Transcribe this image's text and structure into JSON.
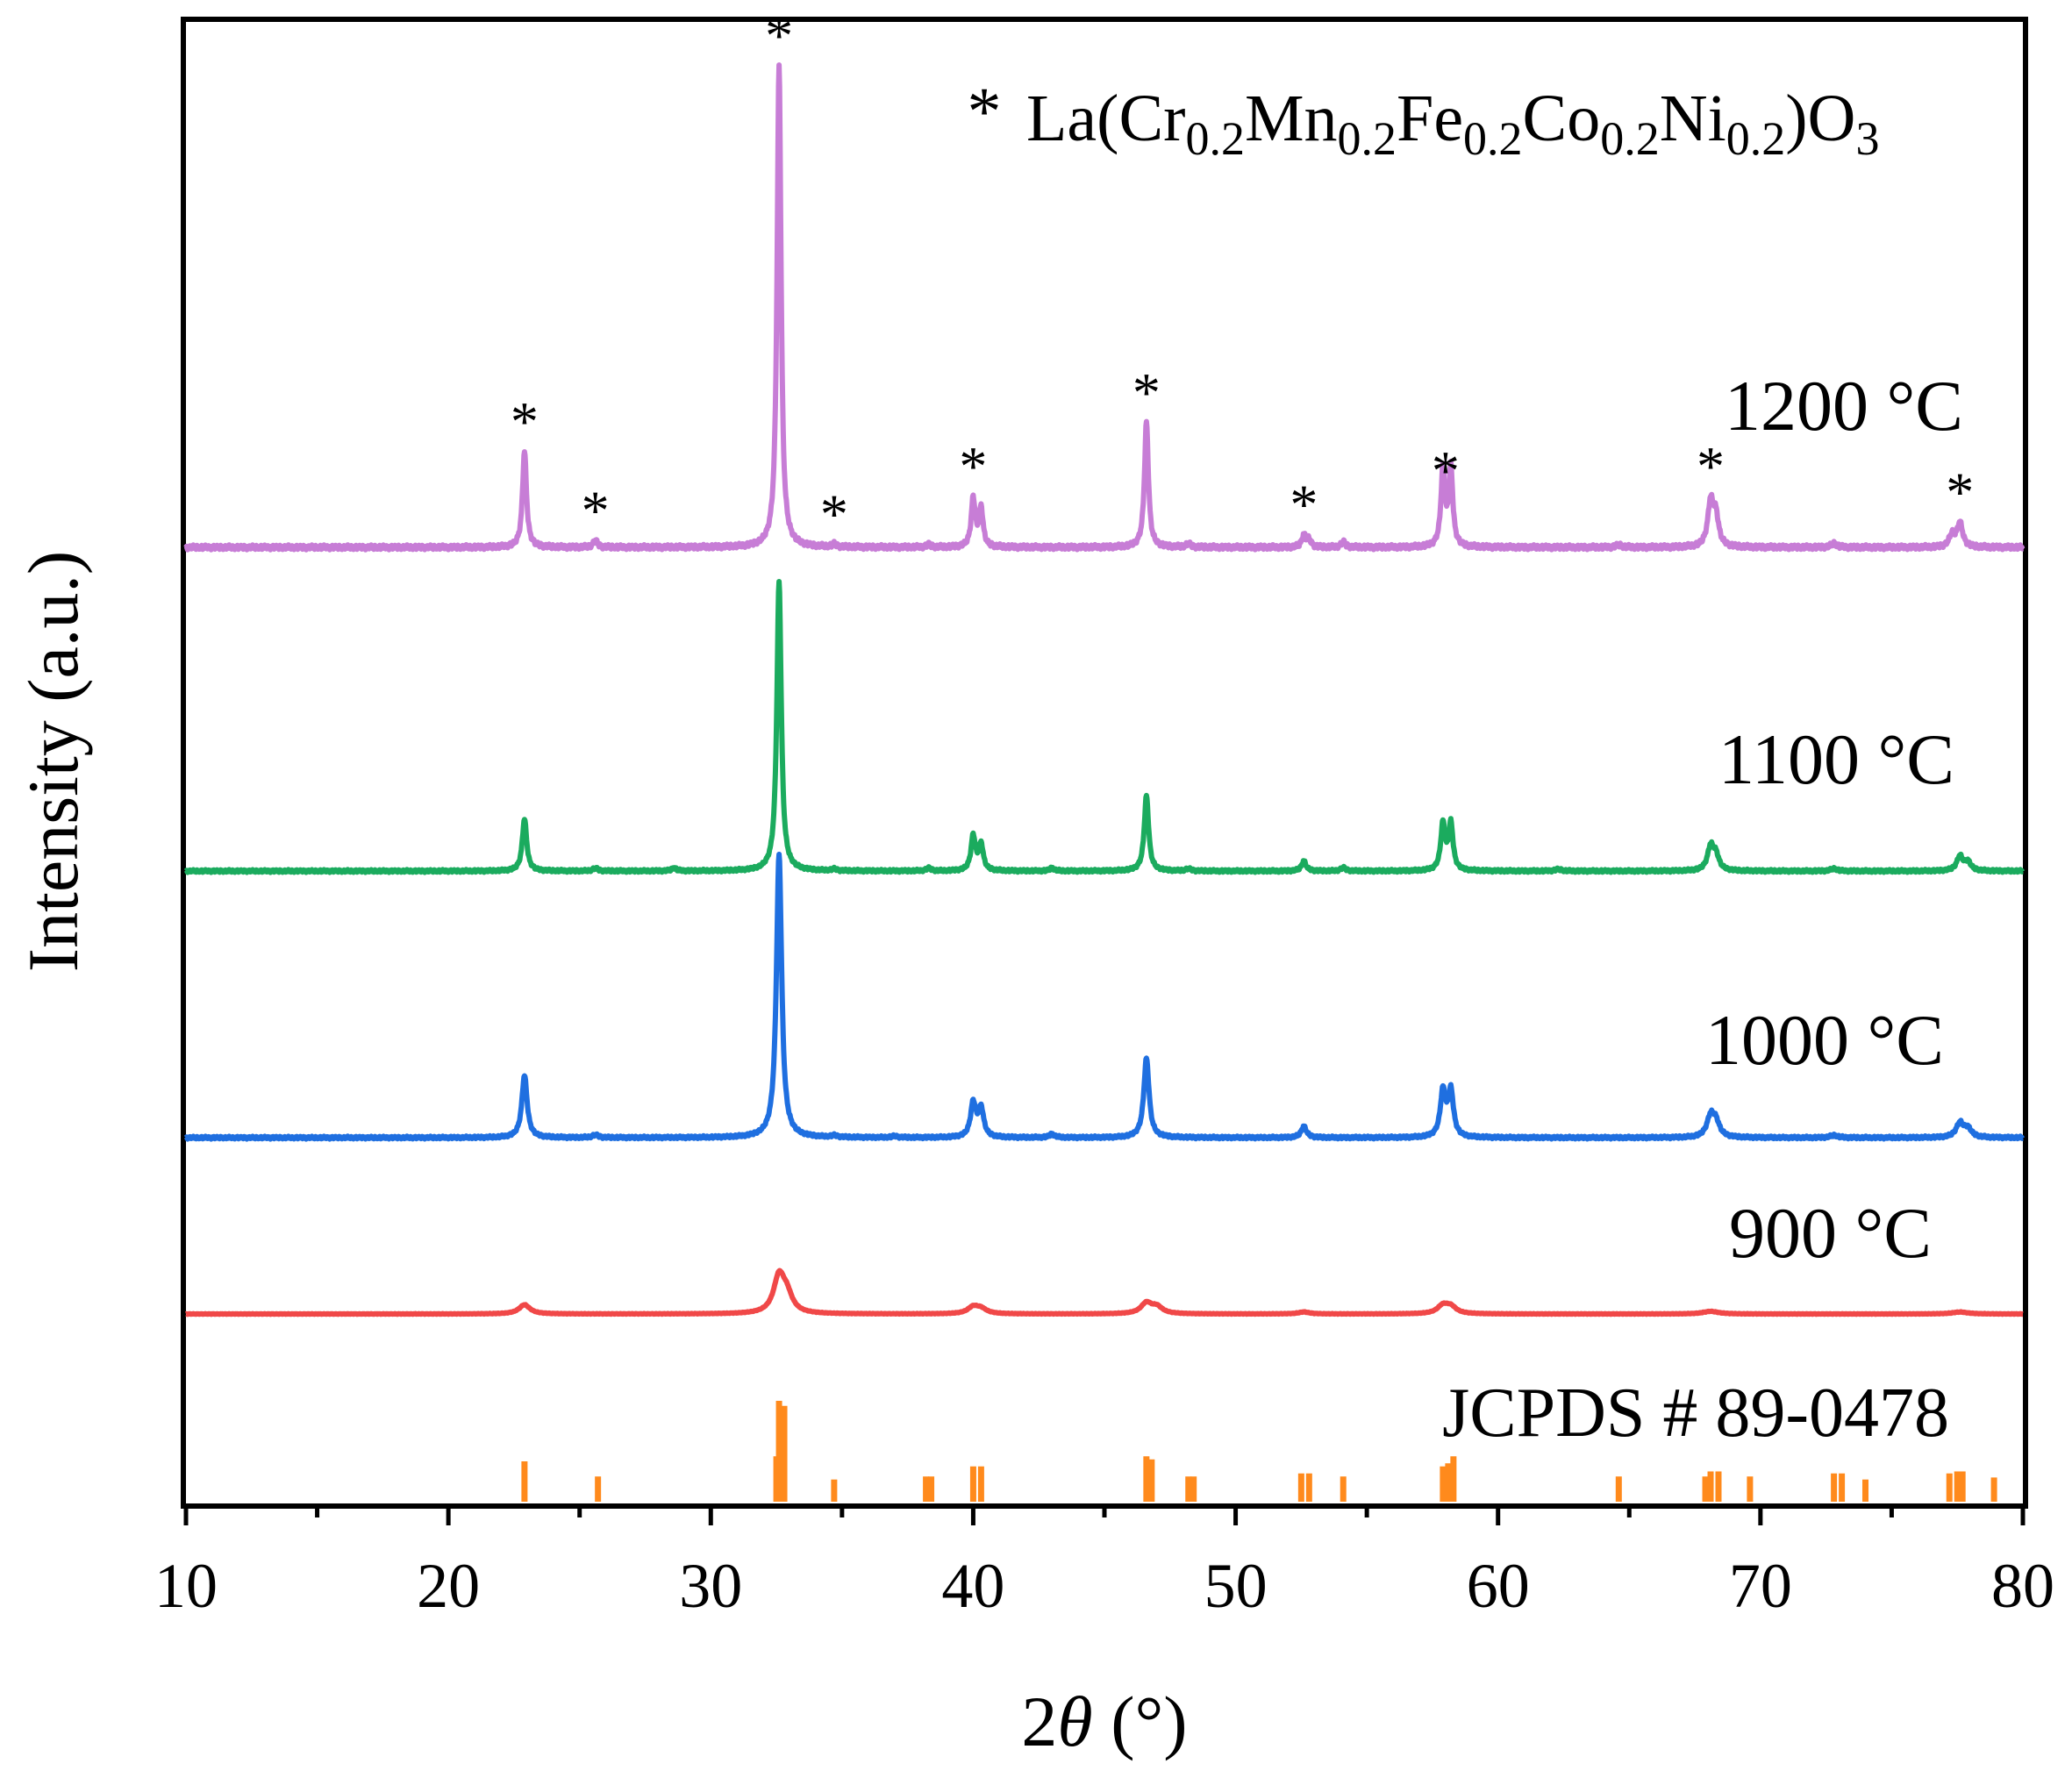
{
  "chart_data": {
    "type": "line",
    "xlabel_prefix": "2",
    "xlabel_theta": "θ",
    "xlabel_suffix": " (°)",
    "ylabel": "Intensity (a.u.)",
    "xlim": [
      10,
      80
    ],
    "xticks": [
      10,
      20,
      30,
      40,
      50,
      60,
      70,
      80
    ],
    "legend": {
      "marker": "*",
      "formula": [
        {
          "text": "La(Cr",
          "sub": false
        },
        {
          "text": "0.2",
          "sub": true
        },
        {
          "text": "Mn",
          "sub": false
        },
        {
          "text": "0.2",
          "sub": true
        },
        {
          "text": "Fe",
          "sub": false
        },
        {
          "text": "0.2",
          "sub": true
        },
        {
          "text": "Co",
          "sub": false
        },
        {
          "text": "0.2",
          "sub": true
        },
        {
          "text": "Ni",
          "sub": false
        },
        {
          "text": "0.2",
          "sub": true
        },
        {
          "text": ")O",
          "sub": false
        },
        {
          "text": "3",
          "sub": true
        }
      ]
    },
    "star_positions": [
      22.9,
      25.6,
      32.6,
      34.7,
      40.0,
      46.6,
      52.6,
      58.0,
      68.1,
      77.6
    ],
    "series": [
      {
        "name": "1200 °C",
        "color": "#c77dd6",
        "peaks": [
          [
            22.9,
            0.2
          ],
          [
            25.6,
            0.015
          ],
          [
            32.6,
            1.0
          ],
          [
            34.7,
            0.006
          ],
          [
            38.3,
            0.006
          ],
          [
            40.0,
            0.1
          ],
          [
            40.3,
            0.08
          ],
          [
            46.6,
            0.26
          ],
          [
            48.2,
            0.008
          ],
          [
            52.6,
            0.025
          ],
          [
            52.8,
            0.015
          ],
          [
            54.1,
            0.012
          ],
          [
            57.9,
            0.16
          ],
          [
            58.2,
            0.16
          ],
          [
            64.6,
            0.005
          ],
          [
            68.1,
            0.09
          ],
          [
            68.3,
            0.06
          ],
          [
            72.8,
            0.008
          ],
          [
            77.3,
            0.025
          ],
          [
            77.6,
            0.05
          ]
        ]
      },
      {
        "name": "1100 °C",
        "color": "#1bab5e",
        "peaks": [
          [
            22.9,
            0.18
          ],
          [
            25.6,
            0.01
          ],
          [
            28.6,
            0.01
          ],
          [
            32.6,
            1.0
          ],
          [
            34.7,
            0.006
          ],
          [
            38.3,
            0.01
          ],
          [
            40.0,
            0.12
          ],
          [
            40.3,
            0.09
          ],
          [
            43.0,
            0.01
          ],
          [
            46.6,
            0.26
          ],
          [
            48.2,
            0.008
          ],
          [
            52.6,
            0.035
          ],
          [
            54.1,
            0.012
          ],
          [
            57.9,
            0.16
          ],
          [
            58.2,
            0.16
          ],
          [
            62.3,
            0.006
          ],
          [
            68.1,
            0.08
          ],
          [
            68.3,
            0.05
          ],
          [
            72.8,
            0.008
          ],
          [
            77.6,
            0.05
          ],
          [
            77.9,
            0.03
          ]
        ]
      },
      {
        "name": "1000 °C",
        "color": "#1f6fe0",
        "peaks": [
          [
            22.9,
            0.22
          ],
          [
            25.6,
            0.01
          ],
          [
            32.6,
            1.0
          ],
          [
            34.7,
            0.006
          ],
          [
            37.0,
            0.005
          ],
          [
            40.0,
            0.12
          ],
          [
            40.3,
            0.1
          ],
          [
            43.0,
            0.012
          ],
          [
            46.6,
            0.28
          ],
          [
            52.6,
            0.04
          ],
          [
            57.9,
            0.16
          ],
          [
            58.2,
            0.16
          ],
          [
            68.1,
            0.07
          ],
          [
            68.3,
            0.05
          ],
          [
            72.8,
            0.008
          ],
          [
            77.6,
            0.05
          ],
          [
            77.9,
            0.03
          ]
        ]
      },
      {
        "name": "900 °C",
        "color": "#f04848",
        "peaks": [
          [
            22.9,
            0.14
          ],
          [
            32.6,
            0.55
          ],
          [
            32.9,
            0.25
          ],
          [
            40.0,
            0.1
          ],
          [
            40.3,
            0.07
          ],
          [
            46.6,
            0.16
          ],
          [
            47.0,
            0.1
          ],
          [
            52.6,
            0.03
          ],
          [
            57.9,
            0.12
          ],
          [
            58.2,
            0.1
          ],
          [
            68.1,
            0.04
          ],
          [
            77.6,
            0.03
          ]
        ]
      }
    ],
    "reference": {
      "name": "JCPDS # 89-0478",
      "color": "#ff8a1c",
      "lines": [
        [
          22.9,
          0.4
        ],
        [
          25.7,
          0.25
        ],
        [
          32.5,
          0.45
        ],
        [
          32.6,
          1.0
        ],
        [
          32.8,
          0.95
        ],
        [
          34.7,
          0.22
        ],
        [
          38.2,
          0.25
        ],
        [
          38.4,
          0.25
        ],
        [
          40.0,
          0.35
        ],
        [
          40.3,
          0.35
        ],
        [
          46.6,
          0.45
        ],
        [
          46.8,
          0.42
        ],
        [
          48.2,
          0.25
        ],
        [
          48.4,
          0.25
        ],
        [
          52.5,
          0.28
        ],
        [
          52.8,
          0.28
        ],
        [
          54.1,
          0.25
        ],
        [
          57.9,
          0.35
        ],
        [
          58.1,
          0.38
        ],
        [
          58.3,
          0.45
        ],
        [
          64.6,
          0.25
        ],
        [
          67.9,
          0.25
        ],
        [
          68.1,
          0.3
        ],
        [
          68.4,
          0.3
        ],
        [
          69.6,
          0.25
        ],
        [
          72.8,
          0.28
        ],
        [
          73.1,
          0.28
        ],
        [
          74.0,
          0.22
        ],
        [
          77.2,
          0.28
        ],
        [
          77.5,
          0.3
        ],
        [
          77.7,
          0.3
        ],
        [
          78.9,
          0.24
        ]
      ]
    }
  }
}
